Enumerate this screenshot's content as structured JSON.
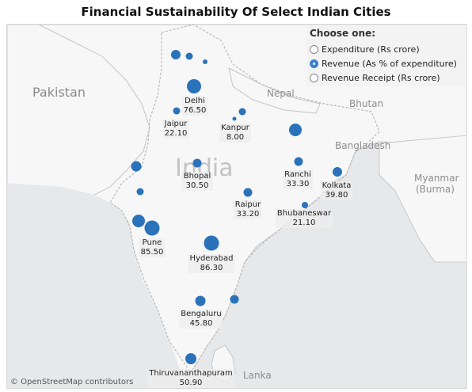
{
  "title": "Financial Sustainability Of Select Indian Cities",
  "attribution": "© OpenStreetMap contributors",
  "selector": {
    "heading": "Choose one:",
    "options": [
      {
        "label": "Expenditure (Rs crore)",
        "selected": false
      },
      {
        "label": "Revenue (As % of expenditure)",
        "selected": true
      },
      {
        "label": "Revenue Receipt (Rs crore)",
        "selected": false
      }
    ]
  },
  "regions": {
    "pakistan": "Pakistan",
    "nepal": "Nepal",
    "bhutan": "Bhutan",
    "bangladesh": "Bangladesh",
    "myanmar": "Myanmar",
    "myanmar_local": "(Burma)",
    "india": "India",
    "lanka": "Lanka"
  },
  "colors": {
    "marker": "#2a72ba",
    "land": "#f7f7f7",
    "water": "#e7e8e9",
    "selected_radio": "#3b7fd0"
  },
  "chart_data": {
    "type": "scatter",
    "title": "Financial Sustainability Of Select Indian Cities",
    "measure": "Revenue (As % of expenditure)",
    "labeled_cities": [
      {
        "name": "Delhi",
        "value": "76.50"
      },
      {
        "name": "Jaipur",
        "value": "22.10"
      },
      {
        "name": "Kanpur",
        "value": "8.00"
      },
      {
        "name": "Bhopal",
        "value": "30.50"
      },
      {
        "name": "Ranchi",
        "value": "33.30"
      },
      {
        "name": "Kolkata",
        "value": "39.80"
      },
      {
        "name": "Raipur",
        "value": "33.20"
      },
      {
        "name": "Bhubaneswar",
        "value": "21.10"
      },
      {
        "name": "Pune",
        "value": "85.50"
      },
      {
        "name": "Hyderabad",
        "value": "86.30"
      },
      {
        "name": "Bengaluru",
        "value": "45.80"
      },
      {
        "name": "Thiruvananthapuram",
        "value": "50.90"
      }
    ]
  }
}
